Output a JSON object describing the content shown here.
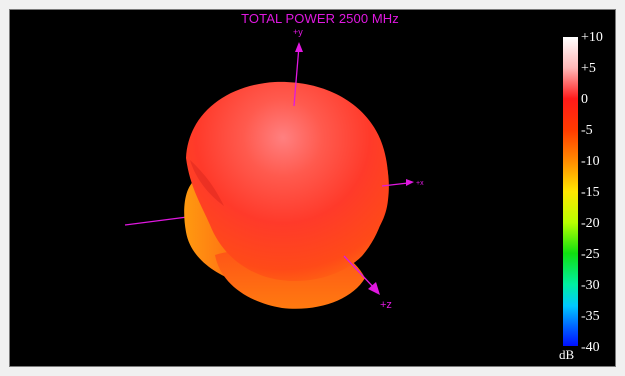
{
  "plot": {
    "title": "TOTAL POWER 2500 MHz",
    "axes": {
      "y_label": "+y",
      "x_label": "+x",
      "z_label": "+z"
    }
  },
  "colorbar": {
    "unit": "dB",
    "ticks": [
      "+10",
      "+5",
      "0",
      "-5",
      "-10",
      "-15",
      "-20",
      "-25",
      "-30",
      "-35",
      "-40"
    ],
    "top_color": "#ffffff",
    "bottom_color": "#0010ff"
  },
  "colors": {
    "background": "#000000",
    "axis": "#e018e0",
    "pattern": "#ff3a2a"
  }
}
